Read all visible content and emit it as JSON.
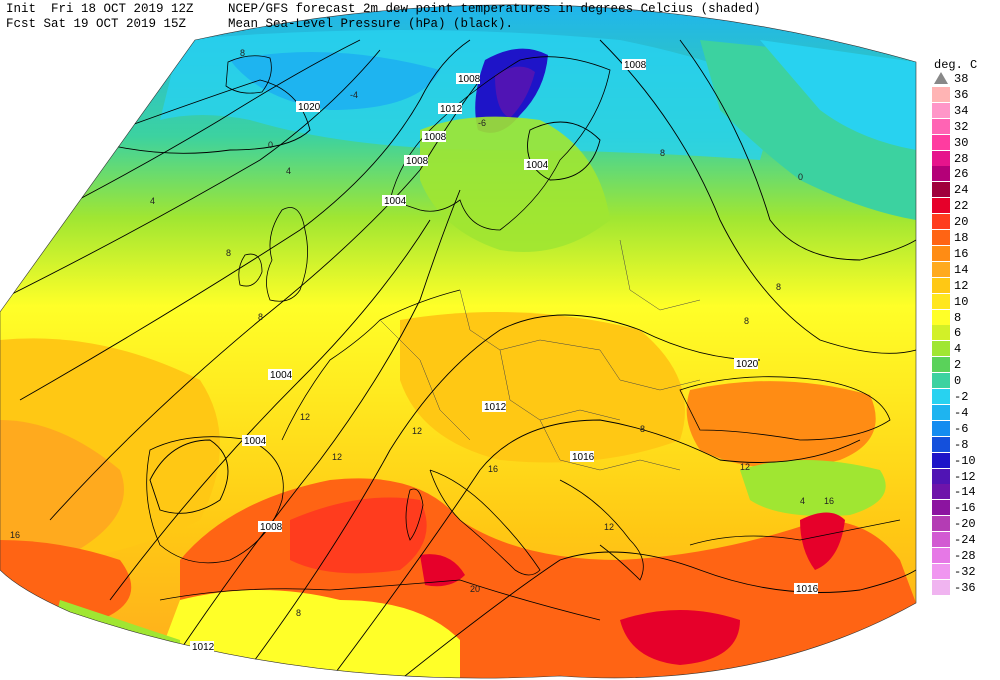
{
  "header": {
    "init_line": "Init  Fri 18 OCT 2019 12Z",
    "fcst_line": "Fcst Sat 19 OCT 2019 15Z",
    "title_line1": "NCEP/GFS forecast 2m dew point temperatures in degrees Celcius (shaded)",
    "title_line2": "Mean Sea-Level Pressure (hPa) (black)."
  },
  "legend": {
    "unit": "deg. C",
    "levels": [
      {
        "label": "38",
        "color": "#ffffff"
      },
      {
        "label": "36",
        "color": "#ffb4b4"
      },
      {
        "label": "34",
        "color": "#ff96c8"
      },
      {
        "label": "32",
        "color": "#ff64b4"
      },
      {
        "label": "30",
        "color": "#ff3ca0"
      },
      {
        "label": "28",
        "color": "#e6148c"
      },
      {
        "label": "26",
        "color": "#b40078"
      },
      {
        "label": "24",
        "color": "#a0003c"
      },
      {
        "label": "22",
        "color": "#e6002a"
      },
      {
        "label": "20",
        "color": "#ff3c1e"
      },
      {
        "label": "18",
        "color": "#ff6414"
      },
      {
        "label": "16",
        "color": "#ff8c14"
      },
      {
        "label": "14",
        "color": "#ffaa1e"
      },
      {
        "label": "12",
        "color": "#ffc814"
      },
      {
        "label": "10",
        "color": "#ffe61e"
      },
      {
        "label": "8",
        "color": "#ffff28"
      },
      {
        "label": "6",
        "color": "#d2f028"
      },
      {
        "label": "4",
        "color": "#a0e632"
      },
      {
        "label": "2",
        "color": "#5ad25a"
      },
      {
        "label": "0",
        "color": "#3cd2a0"
      },
      {
        "label": "-2",
        "color": "#28d2f0"
      },
      {
        "label": "-4",
        "color": "#1eb4f0"
      },
      {
        "label": "-6",
        "color": "#148cf0"
      },
      {
        "label": "-8",
        "color": "#1450dc"
      },
      {
        "label": "-10",
        "color": "#1e14c8"
      },
      {
        "label": "-12",
        "color": "#5014b4"
      },
      {
        "label": "-14",
        "color": "#6e14aa"
      },
      {
        "label": "-16",
        "color": "#8c14a0"
      },
      {
        "label": "-20",
        "color": "#b43cb4"
      },
      {
        "label": "-24",
        "color": "#d25ad2"
      },
      {
        "label": "-28",
        "color": "#e678e6"
      },
      {
        "label": "-32",
        "color": "#f096f0"
      },
      {
        "label": "-36",
        "color": "#f0b4f0"
      }
    ]
  },
  "isobar_labels": [
    "1008",
    "1020",
    "1012",
    "1008",
    "1004",
    "1008",
    "1004",
    "1008",
    "1004",
    "1004",
    "1008",
    "1012",
    "1016",
    "1020",
    "1016",
    "1012"
  ],
  "dewpoint_labels": [
    "8",
    "-4",
    "0",
    "4",
    "4",
    "8",
    "8",
    "12",
    "16",
    "12",
    "16",
    "12",
    "12",
    "20",
    "8",
    "8",
    "0",
    "4",
    "16",
    "12",
    "8",
    "-6",
    "8",
    "8"
  ]
}
